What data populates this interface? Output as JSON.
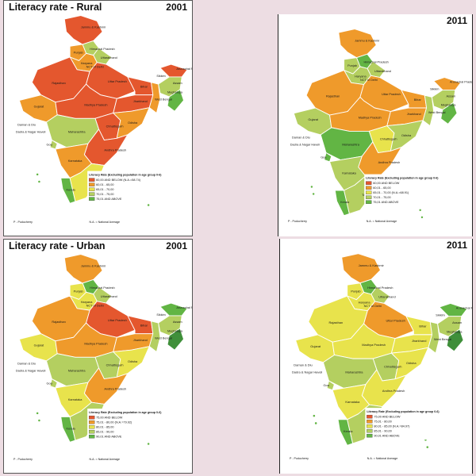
{
  "palette": {
    "red": "#e4572e",
    "orange": "#ef9a2b",
    "yellow": "#e8e34c",
    "lightgreen": "#b4cf60",
    "green": "#62b544",
    "darkgreen": "#3f8f3a",
    "water": "#ffffff",
    "border": "#ffffff"
  },
  "panels": [
    {
      "id": "rural-2001",
      "title": "Literacy rate - Rural",
      "year": "2001",
      "legend_title": "Literacy Rate (Excluding population in age group 0-6)",
      "legend_items": [
        {
          "label": "60,00 AND BELOW (N.A.=58.74)",
          "color": "#e4572e"
        },
        {
          "label": "60,01 - 65,00",
          "color": "#ef9a2b"
        },
        {
          "label": "65,01 - 70,00",
          "color": "#e8e34c"
        },
        {
          "label": "70,01 - 75,00",
          "color": "#b4cf60"
        },
        {
          "label": "75,01 AND ABOVE",
          "color": "#62b544"
        }
      ],
      "footnote_left": "P - Puducherry",
      "footnote_right": "N.A. = National Average",
      "regions": {
        "jk": "#e4572e",
        "hp": "#b4cf60",
        "pb": "#ef9a2b",
        "uk": "#b4cf60",
        "hr": "#ef9a2b",
        "rj": "#e4572e",
        "up": "#e4572e",
        "br": "#e4572e",
        "gj": "#ef9a2b",
        "mp": "#e4572e",
        "cg": "#e4572e",
        "jh": "#e4572e",
        "wb": "#ef9a2b",
        "od": "#ef9a2b",
        "mh": "#b4cf60",
        "ap": "#e4572e",
        "ka": "#ef9a2b",
        "tn": "#e8e34c",
        "kl": "#62b544",
        "go": "#b4cf60",
        "ne": "#e4572e",
        "ne2": "#b4cf60",
        "ne3": "#62b544"
      }
    },
    {
      "id": "rural-2011",
      "title": "",
      "year": "2011",
      "legend_title": "Literacy Rate (Excluding population in age group 0-6)",
      "legend_items": [
        {
          "label": "60,00 AND BELOW",
          "color": "#e4572e"
        },
        {
          "label": "60,01 - 65,00",
          "color": "#ef9a2b"
        },
        {
          "label": "65,01 - 70,00 (N.A.=68.91)",
          "color": "#e8e34c"
        },
        {
          "label": "70,01 - 75,00",
          "color": "#b4cf60"
        },
        {
          "label": "75,01 AND ABOVE",
          "color": "#62b544"
        }
      ],
      "footnote_left": "P - Puducherry",
      "footnote_right": "N.A. = National Average",
      "regions": {
        "jk": "#ef9a2b",
        "hp": "#62b544",
        "pb": "#b4cf60",
        "uk": "#b4cf60",
        "hr": "#b4cf60",
        "rj": "#ef9a2b",
        "up": "#ef9a2b",
        "br": "#ef9a2b",
        "gj": "#b4cf60",
        "mp": "#ef9a2b",
        "cg": "#e8e34c",
        "jh": "#ef9a2b",
        "wb": "#b4cf60",
        "od": "#b4cf60",
        "mh": "#62b544",
        "ap": "#ef9a2b",
        "ka": "#b4cf60",
        "tn": "#b4cf60",
        "kl": "#62b544",
        "go": "#62b544",
        "ne": "#ef9a2b",
        "ne2": "#b4cf60",
        "ne3": "#62b544"
      }
    },
    {
      "id": "urban-2001",
      "title": "Literacy rate - Urban",
      "year": "2001",
      "legend_title": "Literacy Rate (Excluding population in age group 0-6)",
      "legend_items": [
        {
          "label": "75,00 AND BELOW",
          "color": "#e4572e"
        },
        {
          "label": "75,01 - 80,00 (N.A.=79.92)",
          "color": "#ef9a2b"
        },
        {
          "label": "80,01 - 85,00",
          "color": "#e8e34c"
        },
        {
          "label": "85,01 - 90,00",
          "color": "#b4cf60"
        },
        {
          "label": "90,01 AND ABOVE",
          "color": "#62b544"
        }
      ],
      "footnote_left": "P - Puducherry",
      "footnote_right": "N.A. = National Average",
      "regions": {
        "jk": "#ef9a2b",
        "hp": "#62b544",
        "pb": "#e8e34c",
        "uk": "#b4cf60",
        "hr": "#e8e34c",
        "rj": "#ef9a2b",
        "up": "#e4572e",
        "br": "#e4572e",
        "gj": "#e8e34c",
        "mp": "#ef9a2b",
        "cg": "#b4cf60",
        "jh": "#ef9a2b",
        "wb": "#b4cf60",
        "od": "#e8e34c",
        "mh": "#b4cf60",
        "ap": "#ef9a2b",
        "ka": "#e8e34c",
        "tn": "#b4cf60",
        "kl": "#62b544",
        "go": "#b4cf60",
        "ne": "#62b544",
        "ne2": "#b4cf60",
        "ne3": "#3f8f3a"
      }
    },
    {
      "id": "urban-2011",
      "title": "",
      "year": "2011",
      "legend_title": "Literacy Rate (Excluding population in age group 0-6)",
      "legend_items": [
        {
          "label": "75,00 AND BELOW",
          "color": "#e4572e"
        },
        {
          "label": "75,01 - 80,00",
          "color": "#ef9a2b"
        },
        {
          "label": "80,01 - 85,00 (N.A.=84.97)",
          "color": "#e8e34c"
        },
        {
          "label": "85,01 - 90,00",
          "color": "#b4cf60"
        },
        {
          "label": "90,01 AND ABOVE",
          "color": "#62b544"
        }
      ],
      "footnote_left": "P - Puducherry",
      "footnote_right": "N.A. = National Average",
      "regions": {
        "jk": "#ef9a2b",
        "hp": "#62b544",
        "pb": "#e8e34c",
        "uk": "#b4cf60",
        "hr": "#e8e34c",
        "rj": "#e8e34c",
        "up": "#ef9a2b",
        "br": "#e8e34c",
        "gj": "#e8e34c",
        "mp": "#e8e34c",
        "cg": "#b4cf60",
        "jh": "#e8e34c",
        "wb": "#b4cf60",
        "od": "#e8e34c",
        "mh": "#b4cf60",
        "ap": "#e8e34c",
        "ka": "#e8e34c",
        "tn": "#b4cf60",
        "kl": "#62b544",
        "go": "#b4cf60",
        "ne": "#62b544",
        "ne2": "#b4cf60",
        "ne3": "#3f8f3a"
      }
    }
  ],
  "state_labels": {
    "jk": "Jammu & Kashmir",
    "hp": "Himachal Pradesh",
    "pb": "Punjab",
    "uk": "Uttarakhand",
    "hr": "Haryana",
    "dl": "NCT of Delhi",
    "rj": "Rajasthan",
    "up": "Uttar Pradesh",
    "br": "Bihar",
    "gj": "Gujarat",
    "mp": "Madhya Pradesh",
    "cg": "Chhattisgarh",
    "jh": "Jharkhand",
    "wb": "West Bengal",
    "od": "Odisha",
    "mh": "Maharashtra",
    "ap": "Andhra Pradesh",
    "ka": "Karnataka",
    "tn": "Tamil Nadu",
    "kl": "Kerala",
    "go": "Goa",
    "sk": "Sikkim",
    "as": "Assam",
    "ar": "Arunachal Pradesh",
    "ml": "Meghalaya",
    "dd": "Daman & Diu",
    "dn": "Dadra & Nagar Haveli"
  }
}
